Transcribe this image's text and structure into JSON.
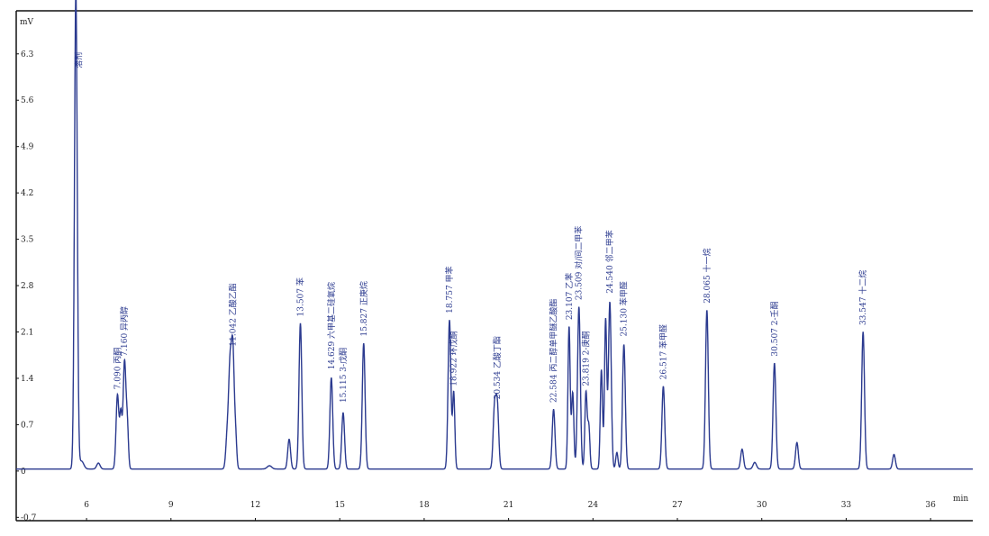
{
  "chart_data": {
    "type": "line",
    "title": "",
    "ylabel": "mV",
    "xlabel": "min",
    "xlim": [
      3.5,
      37.5
    ],
    "ylim": [
      -0.75,
      6.95
    ],
    "x_ticks": [
      6,
      9,
      12,
      15,
      18,
      21,
      24,
      27,
      30,
      33,
      36
    ],
    "y_ticks": [
      -0.7,
      0,
      0.7,
      1.4,
      2.1,
      2.8,
      3.5,
      4.2,
      4.9,
      5.6,
      6.3
    ],
    "grid": false,
    "legend": "none",
    "colors": {
      "trace": "#2b3a8f",
      "axis": "#111111",
      "label": "#2b3a8f"
    },
    "baseline": 0.03,
    "peaks": [
      {
        "rt": 5.62,
        "height": 7.2,
        "width": 0.05,
        "label": ""
      },
      {
        "rt": 5.82,
        "height": 0.12,
        "width": 0.08,
        "label": ""
      },
      {
        "rt": 6.42,
        "height": 0.09,
        "width": 0.06,
        "label": ""
      },
      {
        "rt": 7.1,
        "height": 1.12,
        "width": 0.05,
        "label": ""
      },
      {
        "rt": 7.22,
        "height": 0.8,
        "width": 0.04,
        "label": ""
      },
      {
        "rt": 7.35,
        "height": 1.62,
        "width": 0.05,
        "label": ""
      },
      {
        "rt": 7.45,
        "height": 0.62,
        "width": 0.04,
        "label": ""
      },
      {
        "rt": 11.0,
        "height": 0.5,
        "width": 0.05,
        "label": ""
      },
      {
        "rt": 11.1,
        "height": 1.45,
        "width": 0.05,
        "label": ""
      },
      {
        "rt": 11.2,
        "height": 1.75,
        "width": 0.05,
        "label": ""
      },
      {
        "rt": 11.3,
        "height": 0.45,
        "width": 0.04,
        "label": ""
      },
      {
        "rt": 12.5,
        "height": 0.05,
        "width": 0.08,
        "label": ""
      },
      {
        "rt": 13.2,
        "height": 0.45,
        "width": 0.05,
        "label": ""
      },
      {
        "rt": 13.6,
        "height": 2.2,
        "width": 0.05,
        "label": ""
      },
      {
        "rt": 14.7,
        "height": 1.38,
        "width": 0.05,
        "label": ""
      },
      {
        "rt": 15.12,
        "height": 0.85,
        "width": 0.05,
        "label": ""
      },
      {
        "rt": 15.85,
        "height": 1.9,
        "width": 0.05,
        "label": ""
      },
      {
        "rt": 18.9,
        "height": 2.25,
        "width": 0.05,
        "label": ""
      },
      {
        "rt": 19.05,
        "height": 1.15,
        "width": 0.04,
        "label": ""
      },
      {
        "rt": 20.5,
        "height": 0.9,
        "width": 0.05,
        "label": ""
      },
      {
        "rt": 20.6,
        "height": 0.95,
        "width": 0.05,
        "label": ""
      },
      {
        "rt": 22.6,
        "height": 0.9,
        "width": 0.05,
        "label": ""
      },
      {
        "rt": 23.15,
        "height": 2.15,
        "width": 0.04,
        "label": ""
      },
      {
        "rt": 23.28,
        "height": 1.15,
        "width": 0.04,
        "label": ""
      },
      {
        "rt": 23.5,
        "height": 2.45,
        "width": 0.05,
        "label": ""
      },
      {
        "rt": 23.75,
        "height": 1.15,
        "width": 0.04,
        "label": ""
      },
      {
        "rt": 23.85,
        "height": 0.65,
        "width": 0.04,
        "label": ""
      },
      {
        "rt": 24.3,
        "height": 1.5,
        "width": 0.04,
        "label": ""
      },
      {
        "rt": 24.45,
        "height": 2.25,
        "width": 0.04,
        "label": ""
      },
      {
        "rt": 24.6,
        "height": 2.52,
        "width": 0.05,
        "label": ""
      },
      {
        "rt": 24.85,
        "height": 0.25,
        "width": 0.04,
        "label": ""
      },
      {
        "rt": 25.1,
        "height": 1.88,
        "width": 0.05,
        "label": ""
      },
      {
        "rt": 26.5,
        "height": 1.25,
        "width": 0.05,
        "label": ""
      },
      {
        "rt": 28.05,
        "height": 2.4,
        "width": 0.05,
        "label": ""
      },
      {
        "rt": 29.3,
        "height": 0.3,
        "width": 0.05,
        "label": ""
      },
      {
        "rt": 29.75,
        "height": 0.1,
        "width": 0.06,
        "label": ""
      },
      {
        "rt": 30.45,
        "height": 1.6,
        "width": 0.05,
        "label": ""
      },
      {
        "rt": 31.25,
        "height": 0.4,
        "width": 0.05,
        "label": ""
      },
      {
        "rt": 33.6,
        "height": 2.07,
        "width": 0.05,
        "label": ""
      },
      {
        "rt": 34.7,
        "height": 0.22,
        "width": 0.05,
        "label": ""
      }
    ],
    "annotations": [
      {
        "text": "溶剂",
        "x": 5.72,
        "y": 6.0
      },
      {
        "text": "7.090 丙酮",
        "x": 7.1,
        "y": 1.15
      },
      {
        "text": "7.160 异丙醇",
        "x": 7.35,
        "y": 1.65
      },
      {
        "text": "11.042 乙酸乙酯",
        "x": 11.2,
        "y": 1.8
      },
      {
        "text": "13.507 苯",
        "x": 13.6,
        "y": 2.25
      },
      {
        "text": "14.629 六甲基二硅氧烷",
        "x": 14.7,
        "y": 1.45
      },
      {
        "text": "15.115 3-戊酮",
        "x": 15.12,
        "y": 0.95
      },
      {
        "text": "15.827 正庚烷",
        "x": 15.85,
        "y": 1.95
      },
      {
        "text": "18.757 甲苯",
        "x": 18.9,
        "y": 2.3
      },
      {
        "text": "18.922 环戊酮",
        "x": 19.05,
        "y": 1.2
      },
      {
        "text": "20.534 乙酸丁酯",
        "x": 20.6,
        "y": 1.0
      },
      {
        "text": "22.584 丙二醇单甲醚乙酸酯",
        "x": 22.6,
        "y": 0.95
      },
      {
        "text": "23.107 乙苯",
        "x": 23.15,
        "y": 2.2
      },
      {
        "text": "23.509 对/间二甲苯",
        "x": 23.5,
        "y": 2.5
      },
      {
        "text": "23.819 2-庚酮",
        "x": 23.75,
        "y": 1.2
      },
      {
        "text": "24.540 邻二甲苯",
        "x": 24.6,
        "y": 2.6
      },
      {
        "text": "25.130 苯甲醛",
        "x": 25.1,
        "y": 1.95
      },
      {
        "text": "26.517 苯甲醛",
        "x": 26.5,
        "y": 1.3
      },
      {
        "text": "28.065 十一烷",
        "x": 28.05,
        "y": 2.45
      },
      {
        "text": "30.507 2-壬酮",
        "x": 30.45,
        "y": 1.65
      },
      {
        "text": "33.547 十二烷",
        "x": 33.6,
        "y": 2.12
      }
    ]
  }
}
